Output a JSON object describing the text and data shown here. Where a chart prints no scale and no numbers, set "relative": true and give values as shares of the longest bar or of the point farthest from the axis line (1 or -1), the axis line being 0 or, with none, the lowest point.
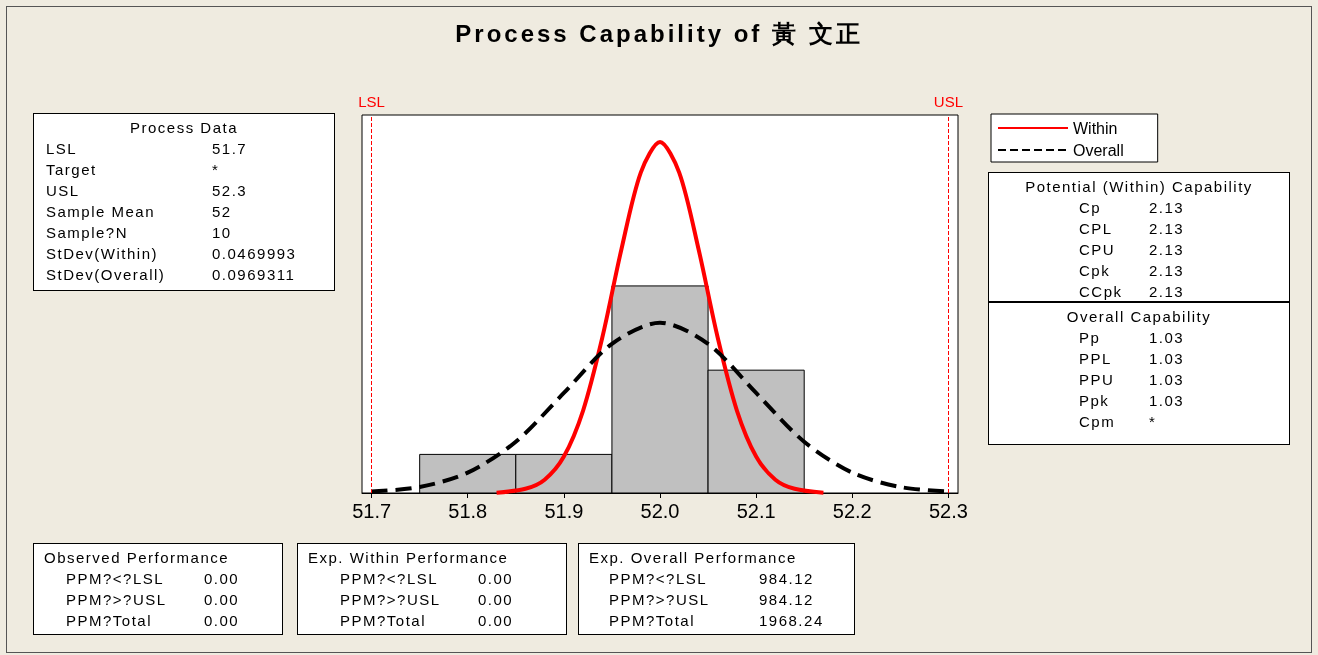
{
  "chart_data": {
    "type": "histogram",
    "title": "Process Capability of 黃 文正",
    "relative": true,
    "bins": [
      51.75,
      51.85,
      51.95,
      52.05,
      52.15
    ],
    "values": [
      0.11,
      0.11,
      0.59,
      0.35
    ],
    "color": "#c0c0c0",
    "series": [
      {
        "name": "Within",
        "type": "line",
        "color": "#ff0000",
        "line_style": "solid",
        "x": [
          51.83,
          51.86,
          51.88,
          51.9,
          51.92,
          51.94,
          51.96,
          51.98,
          52.0,
          52.02,
          52.04,
          52.06,
          52.08,
          52.1,
          52.12,
          52.14,
          52.17
        ],
        "values": [
          0.001,
          0.012,
          0.038,
          0.104,
          0.235,
          0.443,
          0.696,
          0.913,
          1,
          0.913,
          0.696,
          0.443,
          0.235,
          0.104,
          0.038,
          0.012,
          0.001
        ]
      },
      {
        "name": "Overall",
        "type": "line",
        "color": "#000000",
        "line_style": "dashed",
        "x": [
          51.7,
          51.75,
          51.8,
          51.85,
          51.9,
          51.95,
          52.0,
          52.05,
          52.1,
          52.15,
          52.2,
          52.25,
          52.3
        ],
        "values": [
          0.004,
          0.017,
          0.058,
          0.146,
          0.285,
          0.425,
          0.485,
          0.425,
          0.285,
          0.146,
          0.058,
          0.017,
          0.004
        ]
      }
    ],
    "xlim": [
      51.69,
      52.31
    ],
    "xticks": [
      51.7,
      51.8,
      51.9,
      {
        "value": 52,
        "label": "52.0"
      },
      52.1,
      52.2,
      52.3
    ],
    "ref_lines": [
      {
        "axis": "x",
        "value": 51.7,
        "label": "LSL",
        "color": "#ff0000",
        "line_style": "dashed"
      },
      {
        "axis": "x",
        "value": 52.3,
        "label": "USL",
        "color": "#ff0000",
        "line_style": "dashed"
      }
    ],
    "legend": "right",
    "grid": false,
    "annotations": [
      "Process Data\nLSL\t51.7\nTarget\t*\nUSL\t52.3\nSample Mean\t52\nSample?N\t10\nStDev(Within)\t0.0469993\nStDev(Overall)\t0.0969311",
      "Potential (Within) Capability\nCp\t2.13\nCPL\t2.13\nCPU\t2.13\nCpk\t2.13\nCCpk\t2.13",
      "Overall Capability\nPp\t1.03\nPPL\t1.03\nPPU\t1.03\nPpk\t1.03\nCpm\t*",
      "Observed Performance\nPPM?<?LSL\t0.00\nPPM?>?USL\t0.00\nPPM?Total\t0.00",
      "Exp. Within Performance\nPPM?<?LSL\t0.00\nPPM?>?USL\t0.00\nPPM?Total\t0.00",
      "Exp. Overall Performance\nPPM?<?LSL\t984.12\nPPM?>?USL\t984.12\nPPM?Total\t1968.24"
    ]
  }
}
